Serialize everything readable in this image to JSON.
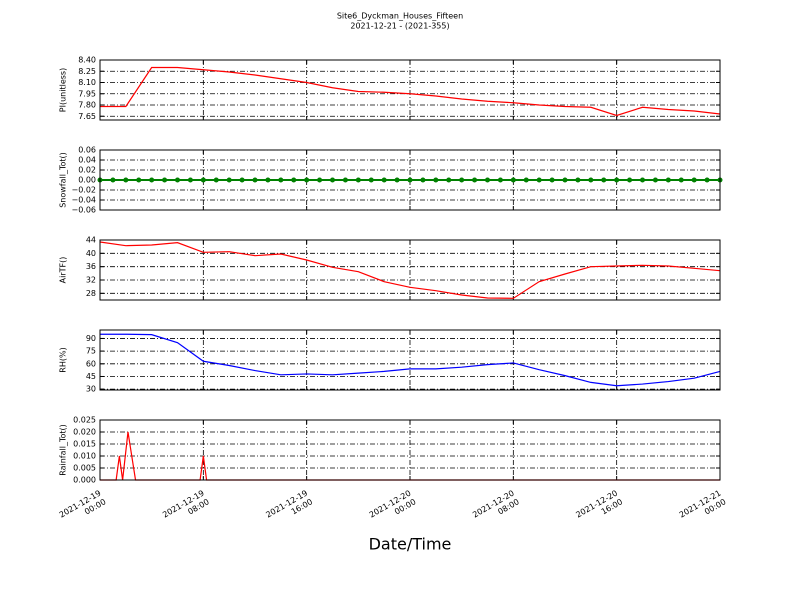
{
  "chart_data": [
    {
      "type": "line",
      "title": "Site6_Dyckman_Houses_Fifteen",
      "subtitle": "2021-12-21 - (2021-355)",
      "ylabel": "PI(unitless)",
      "x": [
        "2021-12-19 00:00",
        "2021-12-19 02:00",
        "2021-12-19 04:00",
        "2021-12-19 06:00",
        "2021-12-19 08:00",
        "2021-12-19 10:00",
        "2021-12-19 12:00",
        "2021-12-19 14:00",
        "2021-12-19 16:00",
        "2021-12-19 18:00",
        "2021-12-19 20:00",
        "2021-12-19 22:00",
        "2021-12-20 00:00",
        "2021-12-20 02:00",
        "2021-12-20 04:00",
        "2021-12-20 06:00",
        "2021-12-20 08:00",
        "2021-12-20 10:00",
        "2021-12-20 12:00",
        "2021-12-20 14:00",
        "2021-12-20 16:00",
        "2021-12-20 18:00",
        "2021-12-20 20:00",
        "2021-12-20 22:00",
        "2021-12-21 00:00"
      ],
      "series": [
        {
          "color": "#ff0000",
          "values": [
            7.78,
            7.78,
            8.3,
            8.3,
            8.27,
            8.24,
            8.2,
            8.15,
            8.1,
            8.03,
            7.98,
            7.97,
            7.95,
            7.92,
            7.88,
            7.85,
            7.83,
            7.8,
            7.78,
            7.77,
            7.66,
            7.77,
            7.74,
            7.72,
            7.68
          ]
        }
      ],
      "xlim": [
        "2021-12-19 00:00",
        "2021-12-21 00:00"
      ],
      "xticks": [
        "2021-12-19 00:00",
        "2021-12-19 08:00",
        "2021-12-19 16:00",
        "2021-12-20 00:00",
        "2021-12-20 08:00",
        "2021-12-20 16:00",
        "2021-12-21 00:00"
      ],
      "ylim": [
        7.6,
        8.4
      ],
      "yticks": [
        {
          "value": 7.65,
          "label": "7.65"
        },
        {
          "value": 7.8,
          "label": "7.80"
        },
        {
          "value": 7.95,
          "label": "7.95"
        },
        {
          "value": 8.1,
          "label": "8.10"
        },
        {
          "value": 8.25,
          "label": "8.25"
        },
        {
          "value": 8.4,
          "label": "8.40"
        }
      ],
      "grid": true
    },
    {
      "type": "line",
      "ylabel": "Snowfall_Tot()",
      "markers": true,
      "x": [
        "2021-12-19 00:00",
        "2021-12-19 01:00",
        "2021-12-19 02:00",
        "2021-12-19 03:00",
        "2021-12-19 04:00",
        "2021-12-19 05:00",
        "2021-12-19 06:00",
        "2021-12-19 07:00",
        "2021-12-19 08:00",
        "2021-12-19 09:00",
        "2021-12-19 10:00",
        "2021-12-19 11:00",
        "2021-12-19 12:00",
        "2021-12-19 13:00",
        "2021-12-19 14:00",
        "2021-12-19 15:00",
        "2021-12-19 16:00",
        "2021-12-19 17:00",
        "2021-12-19 18:00",
        "2021-12-19 19:00",
        "2021-12-19 20:00",
        "2021-12-19 21:00",
        "2021-12-19 22:00",
        "2021-12-19 23:00",
        "2021-12-20 00:00",
        "2021-12-20 01:00",
        "2021-12-20 02:00",
        "2021-12-20 03:00",
        "2021-12-20 04:00",
        "2021-12-20 05:00",
        "2021-12-20 06:00",
        "2021-12-20 07:00",
        "2021-12-20 08:00",
        "2021-12-20 09:00",
        "2021-12-20 10:00",
        "2021-12-20 11:00",
        "2021-12-20 12:00",
        "2021-12-20 13:00",
        "2021-12-20 14:00",
        "2021-12-20 15:00",
        "2021-12-20 16:00",
        "2021-12-20 17:00",
        "2021-12-20 18:00",
        "2021-12-20 19:00",
        "2021-12-20 20:00",
        "2021-12-20 21:00",
        "2021-12-20 22:00",
        "2021-12-20 23:00",
        "2021-12-21 00:00"
      ],
      "series": [
        {
          "color": "#008000",
          "values": [
            0,
            0,
            0,
            0,
            0,
            0,
            0,
            0,
            0,
            0,
            0,
            0,
            0,
            0,
            0,
            0,
            0,
            0,
            0,
            0,
            0,
            0,
            0,
            0,
            0,
            0,
            0,
            0,
            0,
            0,
            0,
            0,
            0,
            0,
            0,
            0,
            0,
            0,
            0,
            0,
            0,
            0,
            0,
            0,
            0,
            0,
            0,
            0,
            0
          ]
        }
      ],
      "xlim": [
        "2021-12-19 00:00",
        "2021-12-21 00:00"
      ],
      "xticks": [
        "2021-12-19 00:00",
        "2021-12-19 08:00",
        "2021-12-19 16:00",
        "2021-12-20 00:00",
        "2021-12-20 08:00",
        "2021-12-20 16:00",
        "2021-12-21 00:00"
      ],
      "ylim": [
        -0.06,
        0.06
      ],
      "yticks": [
        {
          "value": -0.06,
          "label": "−0.06"
        },
        {
          "value": -0.04,
          "label": "−0.04"
        },
        {
          "value": -0.02,
          "label": "−0.02"
        },
        {
          "value": 0,
          "label": "0.00"
        },
        {
          "value": 0.02,
          "label": "0.02"
        },
        {
          "value": 0.04,
          "label": "0.04"
        },
        {
          "value": 0.06,
          "label": "0.06"
        }
      ],
      "grid": true
    },
    {
      "type": "line",
      "ylabel": "AirTF()",
      "x": [
        "2021-12-19 00:00",
        "2021-12-19 02:00",
        "2021-12-19 04:00",
        "2021-12-19 06:00",
        "2021-12-19 08:00",
        "2021-12-19 10:00",
        "2021-12-19 12:00",
        "2021-12-19 14:00",
        "2021-12-19 16:00",
        "2021-12-19 18:00",
        "2021-12-19 20:00",
        "2021-12-19 22:00",
        "2021-12-20 00:00",
        "2021-12-20 02:00",
        "2021-12-20 04:00",
        "2021-12-20 06:00",
        "2021-12-20 08:00",
        "2021-12-20 10:00",
        "2021-12-20 12:00",
        "2021-12-20 14:00",
        "2021-12-20 16:00",
        "2021-12-20 18:00",
        "2021-12-20 20:00",
        "2021-12-20 22:00",
        "2021-12-21 00:00"
      ],
      "series": [
        {
          "color": "#ff0000",
          "values": [
            43.4,
            42.3,
            42.5,
            43.2,
            40.3,
            40.5,
            39.3,
            39.8,
            38,
            35.8,
            34.5,
            31.5,
            29.8,
            28.8,
            27.5,
            26.6,
            26.5,
            31.5,
            33.8,
            36,
            36.2,
            36.4,
            36.2,
            35.5,
            34.8
          ]
        }
      ],
      "xlim": [
        "2021-12-19 00:00",
        "2021-12-21 00:00"
      ],
      "xticks": [
        "2021-12-19 00:00",
        "2021-12-19 08:00",
        "2021-12-19 16:00",
        "2021-12-20 00:00",
        "2021-12-20 08:00",
        "2021-12-20 16:00",
        "2021-12-21 00:00"
      ],
      "ylim": [
        26,
        44
      ],
      "yticks": [
        28,
        32,
        36,
        40,
        44
      ],
      "grid": true
    },
    {
      "type": "line",
      "ylabel": "RH(%)",
      "x": [
        "2021-12-19 00:00",
        "2021-12-19 02:00",
        "2021-12-19 04:00",
        "2021-12-19 06:00",
        "2021-12-19 08:00",
        "2021-12-19 10:00",
        "2021-12-19 12:00",
        "2021-12-19 14:00",
        "2021-12-19 16:00",
        "2021-12-19 18:00",
        "2021-12-19 20:00",
        "2021-12-19 22:00",
        "2021-12-20 00:00",
        "2021-12-20 02:00",
        "2021-12-20 04:00",
        "2021-12-20 06:00",
        "2021-12-20 08:00",
        "2021-12-20 10:00",
        "2021-12-20 12:00",
        "2021-12-20 14:00",
        "2021-12-20 16:00",
        "2021-12-20 18:00",
        "2021-12-20 20:00",
        "2021-12-20 22:00",
        "2021-12-21 00:00"
      ],
      "series": [
        {
          "color": "#0000ff",
          "values": [
            95,
            95,
            94.5,
            85,
            63,
            58,
            52,
            47,
            48,
            47,
            49,
            51,
            54,
            54,
            56,
            59,
            61,
            53,
            46,
            38,
            34,
            36,
            39,
            43,
            51
          ]
        }
      ],
      "xlim": [
        "2021-12-19 00:00",
        "2021-12-21 00:00"
      ],
      "xticks": [
        "2021-12-19 00:00",
        "2021-12-19 08:00",
        "2021-12-19 16:00",
        "2021-12-20 00:00",
        "2021-12-20 08:00",
        "2021-12-20 16:00",
        "2021-12-21 00:00"
      ],
      "ylim": [
        29,
        100
      ],
      "yticks": [
        30,
        45,
        60,
        75,
        90
      ],
      "grid": true
    },
    {
      "type": "line",
      "ylabel": "Rainfall_Tot()",
      "xlabel": "Date/Time",
      "x": [
        "2021-12-19 00:00",
        "2021-12-19 01:15",
        "2021-12-19 01:30",
        "2021-12-19 01:45",
        "2021-12-19 02:10",
        "2021-12-19 02:45",
        "2021-12-19 07:45",
        "2021-12-19 08:00",
        "2021-12-19 08:15",
        "2021-12-21 00:00"
      ],
      "series": [
        {
          "color": "#ff0000",
          "values": [
            0,
            0,
            0.01,
            0,
            0.02,
            0,
            0,
            0.01,
            0,
            0
          ]
        }
      ],
      "xlim": [
        "2021-12-19 00:00",
        "2021-12-21 00:00"
      ],
      "xticks": [
        {
          "value": "2021-12-19 00:00",
          "label": [
            "2021-12-19",
            "00:00"
          ]
        },
        {
          "value": "2021-12-19 08:00",
          "label": [
            "2021-12-19",
            "08:00"
          ]
        },
        {
          "value": "2021-12-19 16:00",
          "label": [
            "2021-12-19",
            "16:00"
          ]
        },
        {
          "value": "2021-12-20 00:00",
          "label": [
            "2021-12-20",
            "00:00"
          ]
        },
        {
          "value": "2021-12-20 08:00",
          "label": [
            "2021-12-20",
            "08:00"
          ]
        },
        {
          "value": "2021-12-20 16:00",
          "label": [
            "2021-12-20",
            "16:00"
          ]
        },
        {
          "value": "2021-12-21 00:00",
          "label": [
            "2021-12-21",
            "00:00"
          ]
        }
      ],
      "ylim": [
        0,
        0.025
      ],
      "yticks": [
        {
          "value": 0,
          "label": "0.000"
        },
        {
          "value": 0.005,
          "label": "0.005"
        },
        {
          "value": 0.01,
          "label": "0.010"
        },
        {
          "value": 0.015,
          "label": "0.015"
        },
        {
          "value": 0.02,
          "label": "0.020"
        },
        {
          "value": 0.025,
          "label": "0.025"
        }
      ],
      "grid": true
    }
  ]
}
